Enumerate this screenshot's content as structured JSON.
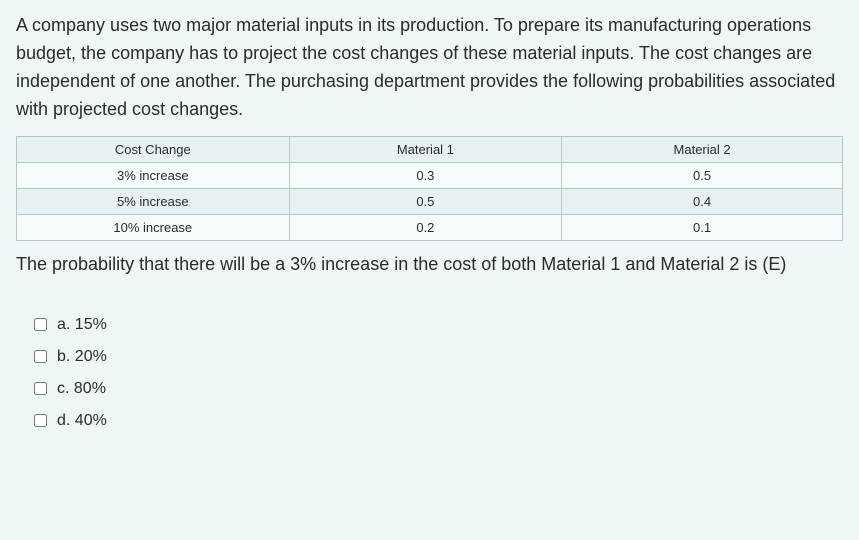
{
  "question": "A company uses two major material inputs in its production.  To prepare its manufacturing operations budget, the company has to project the cost changes of these material inputs.  The cost changes are independent of one another.  The purchasing department provides the following probabilities associated with projected cost changes.",
  "table": {
    "columns": [
      "Cost Change",
      "Material 1",
      "Material 2"
    ],
    "rows": [
      [
        "3% increase",
        "0.3",
        "0.5"
      ],
      [
        "5% increase",
        "0.5",
        "0.4"
      ],
      [
        "10% increase",
        "0.2",
        "0.1"
      ]
    ],
    "header_bg": "#e6f1f3",
    "row_bg_odd": "#f6fbfc",
    "row_bg_even": "#e6f1f3",
    "border_color": "#b9c6c8",
    "font_size": 13,
    "column_widths_pct": [
      33,
      33,
      34
    ],
    "text_align": "center"
  },
  "follow_up": "The probability that there will be a 3% increase in the cost of both Material 1 and Material 2 is (E)",
  "options": [
    {
      "letter": "a",
      "label": "a. 15%"
    },
    {
      "letter": "b",
      "label": "b. 20%"
    },
    {
      "letter": "c",
      "label": "c. 80%"
    },
    {
      "letter": "d",
      "label": "d. 40%"
    }
  ],
  "colors": {
    "page_bg": "#eef6f7",
    "text": "#2b2b2b"
  },
  "typography": {
    "question_fontsize": 18,
    "option_fontsize": 16
  }
}
